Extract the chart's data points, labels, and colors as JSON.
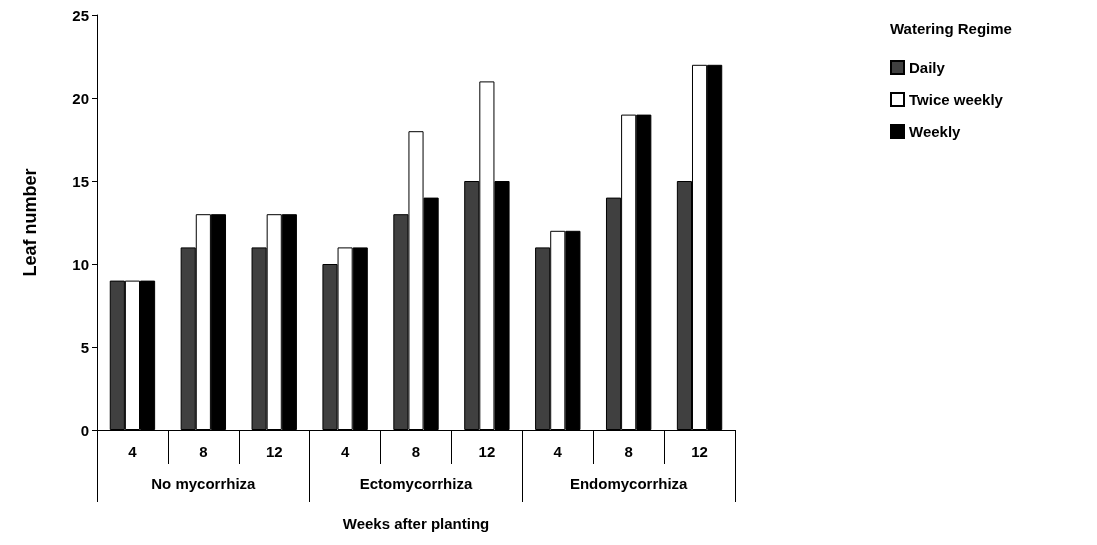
{
  "chart_data": {
    "type": "bar",
    "xlabel": "Weeks after planting",
    "ylabel": "Leaf number",
    "legend_title": "Watering Regime",
    "categories": [
      "4",
      "8",
      "12",
      "4",
      "8",
      "12",
      "4",
      "8",
      "12"
    ],
    "annotations": [
      "No mycorrhiza",
      "Ectomycorrhiza",
      "Endomycorrhiza"
    ],
    "series": [
      {
        "name": "Daily",
        "color": "#404040",
        "values": [
          9,
          11,
          11,
          10,
          13,
          15,
          11,
          14,
          15
        ]
      },
      {
        "name": "Twice weekly",
        "color": "#ffffff",
        "values": [
          9,
          13,
          13,
          11,
          18,
          21,
          12,
          19,
          22
        ]
      },
      {
        "name": "Weekly",
        "color": "#000000",
        "values": [
          9,
          13,
          13,
          11,
          14,
          15,
          12,
          19,
          22
        ]
      }
    ],
    "ylim": [
      0,
      25
    ],
    "yticks": [
      0,
      5,
      10,
      15,
      20,
      25
    ],
    "grid": false,
    "legend": "top right"
  }
}
